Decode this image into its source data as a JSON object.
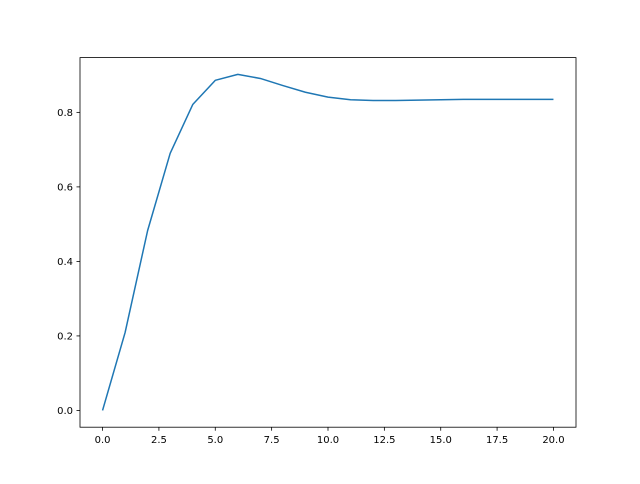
{
  "chart_data": {
    "type": "line",
    "title": "",
    "xlabel": "",
    "ylabel": "",
    "xlim": [
      -1,
      21
    ],
    "ylim": [
      -0.045,
      0.947
    ],
    "grid": false,
    "xticks": [
      0,
      2.5,
      5,
      7.5,
      10,
      12.5,
      15,
      17.5,
      20
    ],
    "xtick_labels": [
      "0.0",
      "2.5",
      "5.0",
      "7.5",
      "10.0",
      "12.5",
      "15.0",
      "17.5",
      "20.0"
    ],
    "yticks": [
      0,
      0.2,
      0.4,
      0.6,
      0.8
    ],
    "ytick_labels": [
      "0.0",
      "0.2",
      "0.4",
      "0.6",
      "0.8"
    ],
    "series": [
      {
        "color": "#1f77b4",
        "x": [
          0,
          1,
          2,
          3,
          4,
          5,
          6,
          7,
          8,
          9,
          10,
          11,
          12,
          13,
          14,
          15,
          16,
          17,
          18,
          19,
          20
        ],
        "y": [
          0.0,
          0.209,
          0.483,
          0.69,
          0.821,
          0.886,
          0.902,
          0.891,
          0.872,
          0.854,
          0.841,
          0.834,
          0.832,
          0.832,
          0.833,
          0.834,
          0.835,
          0.835,
          0.835,
          0.835,
          0.835
        ]
      }
    ]
  }
}
